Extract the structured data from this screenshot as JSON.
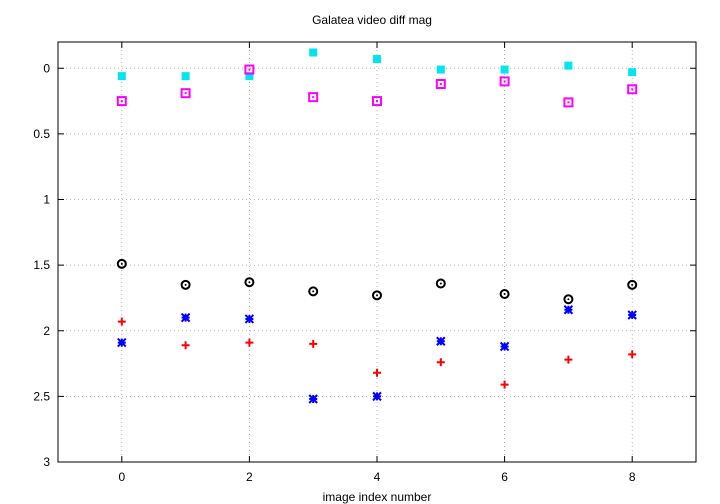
{
  "chart_data": {
    "type": "scatter",
    "title": "Galatea video diff mag",
    "xlabel": "image index number",
    "ylabel": "",
    "xlim": [
      -1,
      9
    ],
    "ylim": [
      3,
      -0.2
    ],
    "y_inverted": true,
    "grid": true,
    "x_ticks": [
      0,
      2,
      4,
      6,
      8
    ],
    "x_tick_labels": [
      "0",
      "2",
      "4",
      "6",
      "8"
    ],
    "y_ticks": [
      0,
      0.5,
      1,
      1.5,
      2,
      2.5,
      3
    ],
    "y_tick_labels": [
      "0",
      "0.5",
      "1",
      "1.5",
      "2",
      "2.5",
      "3"
    ],
    "series": [
      {
        "marker": "filled-square",
        "color": "#00e5ee",
        "x": [
          0,
          1,
          2,
          3,
          4,
          5,
          6,
          7,
          8
        ],
        "y": [
          0.06,
          0.06,
          0.06,
          -0.12,
          -0.07,
          0.01,
          0.01,
          -0.02,
          0.03
        ]
      },
      {
        "marker": "dotted-square",
        "color": "#ff00ff",
        "x": [
          0,
          1,
          2,
          3,
          4,
          5,
          6,
          7,
          8
        ],
        "y": [
          0.25,
          0.19,
          0.01,
          0.22,
          0.25,
          0.12,
          0.1,
          0.26,
          0.16
        ]
      },
      {
        "marker": "dotted-circle",
        "color": "#000000",
        "x": [
          0,
          1,
          2,
          3,
          4,
          5,
          6,
          7,
          8
        ],
        "y": [
          1.49,
          1.65,
          1.63,
          1.7,
          1.73,
          1.64,
          1.72,
          1.76,
          1.65
        ]
      },
      {
        "marker": "plus",
        "color": "#ff0000",
        "x": [
          0,
          1,
          2,
          3,
          4,
          5,
          6,
          7,
          8
        ],
        "y": [
          1.93,
          2.11,
          2.09,
          2.1,
          2.32,
          2.24,
          2.41,
          2.22,
          2.18
        ]
      },
      {
        "marker": "star",
        "color": "#0000ff",
        "x": [
          0,
          1,
          2,
          3,
          4,
          5,
          6,
          7,
          8
        ],
        "y": [
          2.09,
          1.9,
          1.91,
          2.52,
          2.5,
          2.08,
          2.12,
          1.84,
          1.88
        ]
      }
    ]
  }
}
